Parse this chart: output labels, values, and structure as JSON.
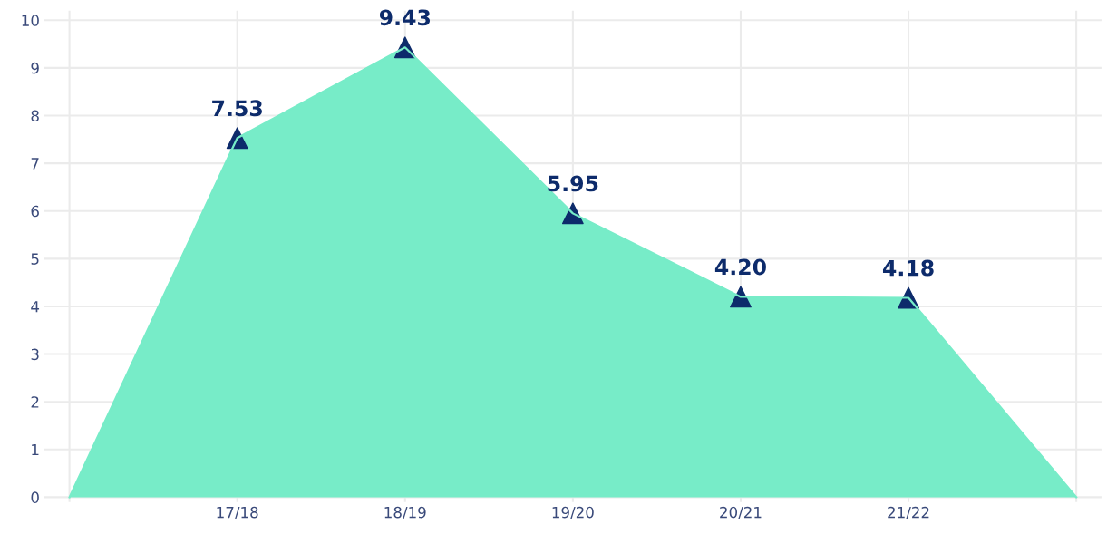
{
  "chart_data": {
    "type": "area",
    "categories": [
      null,
      "17/18",
      "18/19",
      "19/20",
      "20/21",
      "21/22",
      null
    ],
    "series": [
      {
        "color": "#77ecc8",
        "values": [
          0,
          7.53,
          9.43,
          5.95,
          4.2,
          4.18,
          0
        ]
      },
      {
        "type": "scatter",
        "color": "#0d2b6b",
        "marker": "triangle",
        "values": [
          null,
          7.53,
          9.43,
          5.95,
          4.2,
          4.18,
          null
        ],
        "value_labels": [
          null,
          "7.53",
          "9.43",
          "5.95",
          "4.20",
          "4.18",
          null
        ]
      }
    ],
    "ylim": [
      -0.1,
      10.2
    ],
    "yticks": [
      0,
      1,
      2,
      3,
      4,
      5,
      6,
      7,
      8,
      9,
      10
    ],
    "grid": true
  }
}
